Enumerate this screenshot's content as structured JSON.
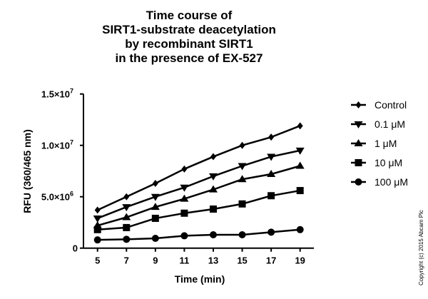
{
  "chart_data": {
    "type": "line",
    "title": [
      "Time course of",
      "SIRT1-substrate deacetylation",
      "by recombinant SIRT1",
      "in the presence of EX-527"
    ],
    "xlabel": "Time (min)",
    "ylabel": "RFU (360/465 nm)",
    "x": [
      5,
      7,
      9,
      11,
      13,
      15,
      17,
      19
    ],
    "xlim": [
      4,
      20
    ],
    "ylim": [
      0,
      15000000
    ],
    "yticks": [
      {
        "value": 0,
        "label": "0"
      },
      {
        "value": 5000000,
        "label": "5.0×10",
        "exp": "6"
      },
      {
        "value": 10000000,
        "label": "1.0×10",
        "exp": "7"
      },
      {
        "value": 15000000,
        "label": "1.5×10",
        "exp": "7"
      }
    ],
    "grid": false,
    "legend_position": "right",
    "series": [
      {
        "name": "Control",
        "marker": "diamond",
        "values": [
          3700000,
          5000000,
          6300000,
          7700000,
          8900000,
          10000000,
          10800000,
          11900000
        ]
      },
      {
        "name": "0.1 μM",
        "marker": "triangle-down",
        "values": [
          2900000,
          4000000,
          5000000,
          5900000,
          7000000,
          8000000,
          8900000,
          9500000
        ]
      },
      {
        "name": "1 μM",
        "marker": "triangle-up",
        "values": [
          2200000,
          3000000,
          4000000,
          4800000,
          5700000,
          6700000,
          7200000,
          8000000
        ]
      },
      {
        "name": "10 μM",
        "marker": "square",
        "values": [
          1800000,
          2000000,
          2900000,
          3400000,
          3800000,
          4300000,
          5100000,
          5600000
        ]
      },
      {
        "name": "100 μM",
        "marker": "circle",
        "values": [
          800000,
          860000,
          950000,
          1200000,
          1300000,
          1300000,
          1550000,
          1800000
        ]
      }
    ],
    "color": "#000000"
  },
  "copyright": "Copyright (c) 2015 Abcam Plc"
}
